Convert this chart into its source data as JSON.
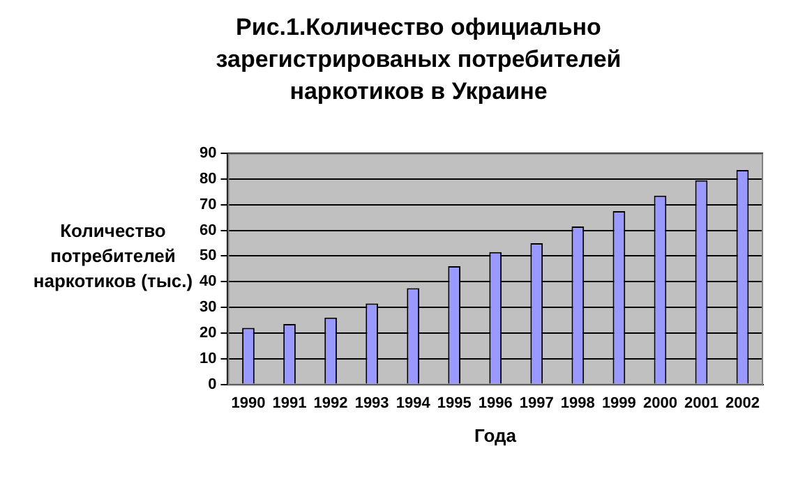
{
  "chart_data": {
    "type": "bar",
    "title": "Рис.1.Количество официально зарегистрированых потребителей наркотиков в Украине",
    "xlabel": "Года",
    "ylabel": "Количество потребителей наркотиков (тыс.)",
    "categories": [
      "1990",
      "1991",
      "1992",
      "1993",
      "1994",
      "1995",
      "1996",
      "1997",
      "1998",
      "1999",
      "2000",
      "2001",
      "2002"
    ],
    "series": [
      {
        "color": "#9999ff",
        "values": [
          22,
          23.5,
          26,
          31.5,
          37.5,
          46,
          51.5,
          55,
          61.5,
          67.5,
          73.5,
          79.5,
          83.5
        ]
      }
    ],
    "ylim": [
      0,
      90
    ],
    "yticks": [
      0,
      10,
      20,
      30,
      40,
      50,
      60,
      70,
      80,
      90
    ],
    "grid": "y",
    "legend": false
  }
}
